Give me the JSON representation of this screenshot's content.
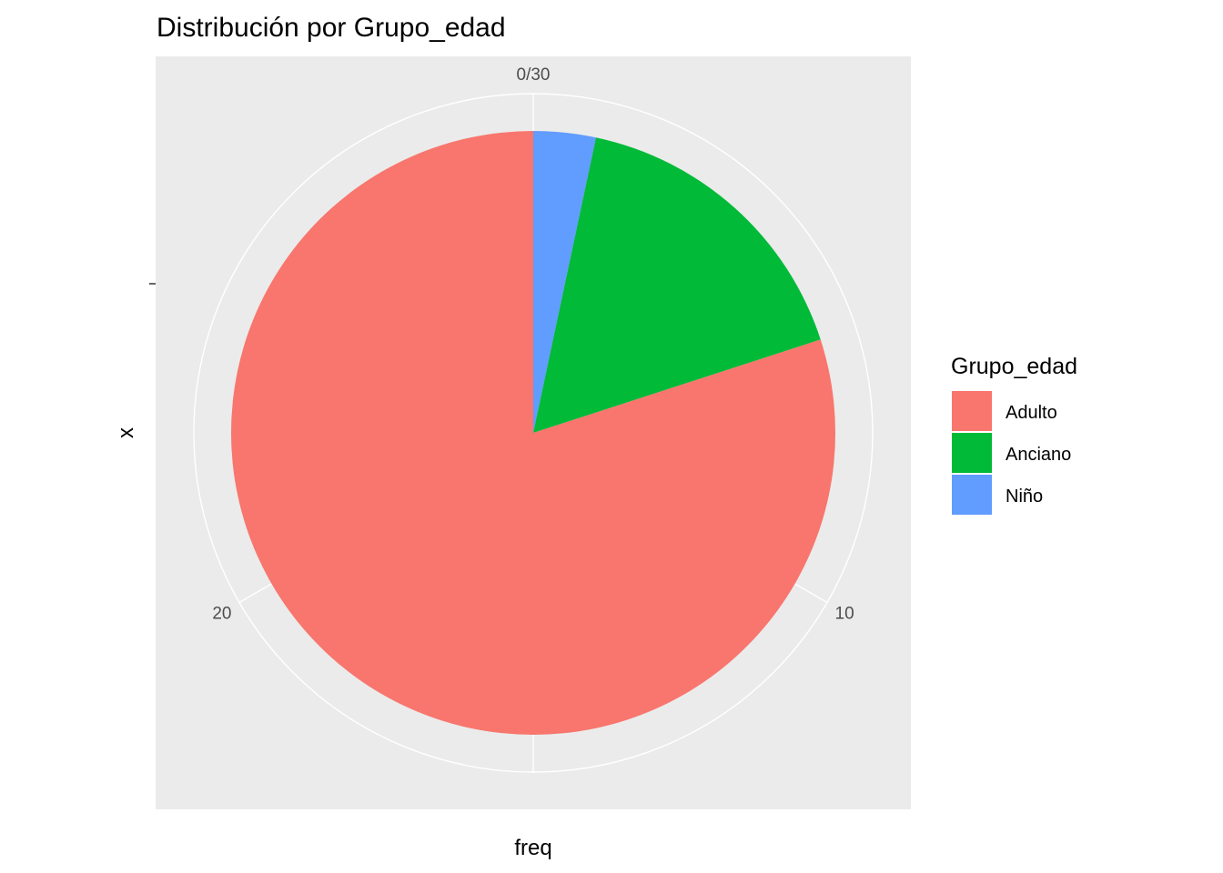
{
  "chart_data": {
    "type": "pie",
    "title": "Distribución por Grupo_edad",
    "xlabel": "freq",
    "ylabel": "x",
    "categories": [
      "Adulto",
      "Anciano",
      "Niño"
    ],
    "values": [
      24,
      5,
      1
    ],
    "colors": [
      "#F8766D",
      "#00BA38",
      "#619CFF"
    ],
    "theta_ticks": [
      {
        "value": 0,
        "label": "0/30"
      },
      {
        "value": 10,
        "label": "10"
      },
      {
        "value": 20,
        "label": "20"
      }
    ],
    "total": 30,
    "legend": {
      "title": "Grupo_edad",
      "position": "right"
    },
    "panel_background": "#EBEBEB",
    "grid_color": "#FFFFFF"
  }
}
